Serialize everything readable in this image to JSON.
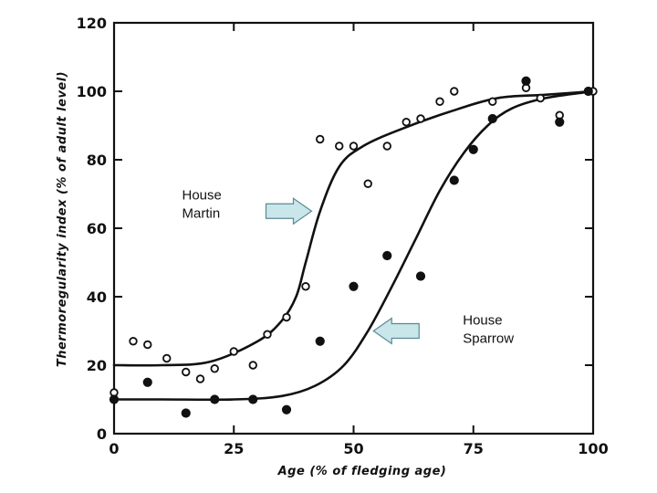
{
  "chart_data": {
    "type": "scatter",
    "title": "",
    "xlabel": "Age (% of fledging age)",
    "ylabel": "Thermoregularity index (% of adult level)",
    "xlim": [
      0,
      100
    ],
    "ylim": [
      0,
      120
    ],
    "x_ticks": [
      0,
      25,
      50,
      75,
      100
    ],
    "y_ticks": [
      0,
      20,
      40,
      60,
      80,
      100,
      120
    ],
    "grid": false,
    "series": [
      {
        "name": "House Martin",
        "marker": "open-circle",
        "points": [
          {
            "x": 0,
            "y": 12
          },
          {
            "x": 4,
            "y": 27
          },
          {
            "x": 7,
            "y": 26
          },
          {
            "x": 11,
            "y": 22
          },
          {
            "x": 15,
            "y": 18
          },
          {
            "x": 18,
            "y": 16
          },
          {
            "x": 21,
            "y": 19
          },
          {
            "x": 25,
            "y": 24
          },
          {
            "x": 29,
            "y": 20
          },
          {
            "x": 32,
            "y": 29
          },
          {
            "x": 36,
            "y": 34
          },
          {
            "x": 40,
            "y": 43
          },
          {
            "x": 43,
            "y": 86
          },
          {
            "x": 47,
            "y": 84
          },
          {
            "x": 50,
            "y": 84
          },
          {
            "x": 53,
            "y": 73
          },
          {
            "x": 57,
            "y": 84
          },
          {
            "x": 61,
            "y": 91
          },
          {
            "x": 64,
            "y": 92
          },
          {
            "x": 68,
            "y": 97
          },
          {
            "x": 71,
            "y": 100
          },
          {
            "x": 79,
            "y": 97
          },
          {
            "x": 86,
            "y": 101
          },
          {
            "x": 89,
            "y": 98
          },
          {
            "x": 93,
            "y": 93
          },
          {
            "x": 100,
            "y": 100
          }
        ],
        "fit_curve": [
          {
            "x": 0,
            "y": 20
          },
          {
            "x": 10,
            "y": 20
          },
          {
            "x": 20,
            "y": 21
          },
          {
            "x": 30,
            "y": 27
          },
          {
            "x": 35,
            "y": 33
          },
          {
            "x": 38,
            "y": 40
          },
          {
            "x": 40,
            "y": 50
          },
          {
            "x": 43,
            "y": 65
          },
          {
            "x": 47,
            "y": 78
          },
          {
            "x": 52,
            "y": 84
          },
          {
            "x": 60,
            "y": 89
          },
          {
            "x": 70,
            "y": 94
          },
          {
            "x": 80,
            "y": 98
          },
          {
            "x": 90,
            "y": 99
          },
          {
            "x": 100,
            "y": 100
          }
        ]
      },
      {
        "name": "House Sparrow",
        "marker": "filled-circle",
        "points": [
          {
            "x": 0,
            "y": 10
          },
          {
            "x": 7,
            "y": 15
          },
          {
            "x": 15,
            "y": 6
          },
          {
            "x": 21,
            "y": 10
          },
          {
            "x": 29,
            "y": 10
          },
          {
            "x": 36,
            "y": 7
          },
          {
            "x": 43,
            "y": 27
          },
          {
            "x": 50,
            "y": 43
          },
          {
            "x": 57,
            "y": 52
          },
          {
            "x": 64,
            "y": 46
          },
          {
            "x": 71,
            "y": 74
          },
          {
            "x": 75,
            "y": 83
          },
          {
            "x": 79,
            "y": 92
          },
          {
            "x": 86,
            "y": 103
          },
          {
            "x": 93,
            "y": 91
          },
          {
            "x": 99,
            "y": 100
          }
        ],
        "fit_curve": [
          {
            "x": 0,
            "y": 10
          },
          {
            "x": 10,
            "y": 10
          },
          {
            "x": 25,
            "y": 10
          },
          {
            "x": 35,
            "y": 11
          },
          {
            "x": 42,
            "y": 14
          },
          {
            "x": 48,
            "y": 20
          },
          {
            "x": 53,
            "y": 30
          },
          {
            "x": 58,
            "y": 43
          },
          {
            "x": 63,
            "y": 57
          },
          {
            "x": 68,
            "y": 71
          },
          {
            "x": 73,
            "y": 82
          },
          {
            "x": 78,
            "y": 90
          },
          {
            "x": 83,
            "y": 95
          },
          {
            "x": 90,
            "y": 98
          },
          {
            "x": 100,
            "y": 100
          }
        ]
      }
    ],
    "annotations": [
      {
        "text_lines": [
          "House",
          "Martin"
        ],
        "series": "House Martin",
        "arrow_points": "right",
        "anchor": {
          "x": 42,
          "y": 65
        }
      },
      {
        "text_lines": [
          "House",
          "Sparrow"
        ],
        "series": "House Sparrow",
        "arrow_points": "left",
        "anchor": {
          "x": 53,
          "y": 30
        }
      }
    ],
    "colors": {
      "ink": "#111111",
      "arrow_fill": "#c9e6ea",
      "arrow_stroke": "#5a8a94"
    }
  }
}
